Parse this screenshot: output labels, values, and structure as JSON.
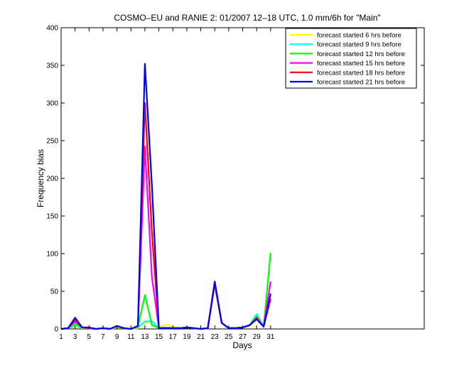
{
  "chart_data": {
    "type": "line",
    "title": "COSMO–EU and RANIE 2: 01/2007 12–18 UTC, 1.0 mm/6h for \"Main\"",
    "xlabel": "Days",
    "ylabel": "Frequency bias",
    "xlim": [
      1,
      53
    ],
    "ylim": [
      0,
      400
    ],
    "x_ticks": [
      1,
      3,
      5,
      7,
      9,
      11,
      13,
      15,
      17,
      19,
      21,
      23,
      25,
      27,
      29,
      31
    ],
    "y_ticks": [
      0,
      50,
      100,
      150,
      200,
      250,
      300,
      350,
      400
    ],
    "grid": false,
    "legend_position": "top-right",
    "x": [
      1,
      2,
      3,
      4,
      5,
      6,
      7,
      8,
      9,
      10,
      11,
      12,
      13,
      14,
      15,
      16,
      17,
      18,
      19,
      20,
      21,
      22,
      23,
      24,
      25,
      26,
      27,
      28,
      29,
      30,
      31
    ],
    "series": [
      {
        "name": "forecast started 6 hrs before",
        "color": "#ffff00",
        "values": [
          0,
          1,
          3,
          1,
          1,
          0,
          1,
          0,
          2,
          1,
          0,
          1,
          8,
          10,
          2,
          6,
          3,
          1,
          2,
          1,
          0,
          1,
          58,
          8,
          1,
          1,
          2,
          4,
          12,
          3,
          45
        ]
      },
      {
        "name": "forecast started 9 hrs before",
        "color": "#00ffff",
        "values": [
          0,
          1,
          5,
          1,
          1,
          0,
          1,
          0,
          3,
          1,
          0,
          2,
          10,
          10,
          1,
          2,
          1,
          1,
          2,
          1,
          0,
          1,
          60,
          8,
          1,
          1,
          2,
          5,
          20,
          3,
          40
        ]
      },
      {
        "name": "forecast started 12 hrs before",
        "color": "#00ff00",
        "values": [
          0,
          1,
          7,
          2,
          1,
          0,
          1,
          0,
          4,
          1,
          0,
          3,
          45,
          5,
          1,
          1,
          1,
          1,
          2,
          1,
          0,
          1,
          60,
          8,
          1,
          1,
          2,
          5,
          17,
          3,
          101
        ]
      },
      {
        "name": "forecast started 15 hrs before",
        "color": "#ff00ff",
        "values": [
          0,
          1,
          10,
          2,
          1,
          0,
          1,
          0,
          4,
          1,
          0,
          4,
          242,
          68,
          1,
          1,
          1,
          1,
          2,
          1,
          0,
          1,
          60,
          8,
          1,
          1,
          2,
          5,
          15,
          3,
          63
        ]
      },
      {
        "name": "forecast started 18 hrs before",
        "color": "#ff0000",
        "values": [
          0,
          1,
          12,
          2,
          1,
          0,
          1,
          0,
          4,
          1,
          0,
          4,
          300,
          128,
          1,
          1,
          1,
          1,
          2,
          1,
          0,
          1,
          60,
          8,
          1,
          1,
          2,
          5,
          14,
          3,
          40
        ]
      },
      {
        "name": "forecast started 21 hrs before",
        "color": "#0000ff",
        "values": [
          0,
          1,
          15,
          2,
          2,
          0,
          1,
          0,
          4,
          1,
          0,
          4,
          352,
          190,
          1,
          1,
          1,
          1,
          2,
          1,
          0,
          1,
          63,
          8,
          1,
          1,
          2,
          5,
          13,
          3,
          47
        ]
      }
    ]
  }
}
